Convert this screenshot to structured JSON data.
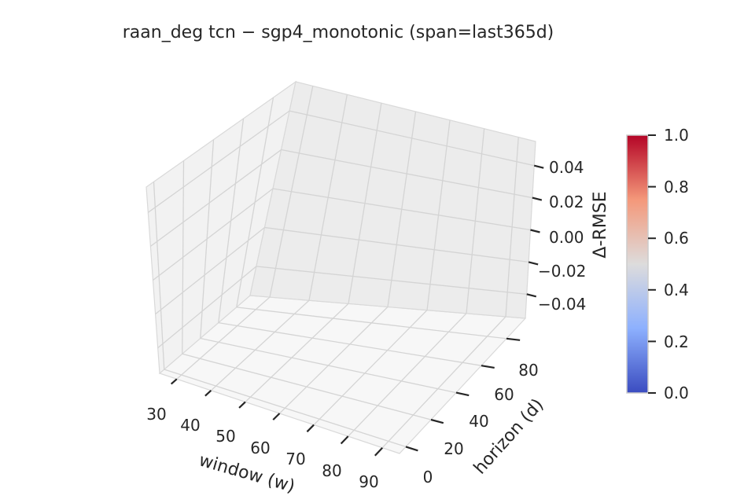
{
  "chart_data": {
    "type": "surface3d",
    "title": "raan_deg  tcn − sgp4_monotonic  (span=last365d)",
    "xlabel": "window (w)",
    "ylabel": "horizon (d)",
    "zlabel": "Δ-RMSE",
    "x_ticks": [
      "30",
      "40",
      "50",
      "60",
      "70",
      "80",
      "90"
    ],
    "y_ticks": [
      "0",
      "20",
      "40",
      "60",
      "80"
    ],
    "z_ticks": [
      "−0.04",
      "−0.02",
      "0.00",
      "0.02",
      "0.04"
    ],
    "xlim": [
      25,
      95
    ],
    "ylim": [
      -5,
      95
    ],
    "zlim": [
      -0.055,
      0.055
    ],
    "series": [],
    "colorbar": {
      "colormap": "coolwarm",
      "range": [
        0.0,
        1.0
      ],
      "ticks": [
        "0.0",
        "0.2",
        "0.4",
        "0.6",
        "0.8",
        "1.0"
      ]
    }
  }
}
